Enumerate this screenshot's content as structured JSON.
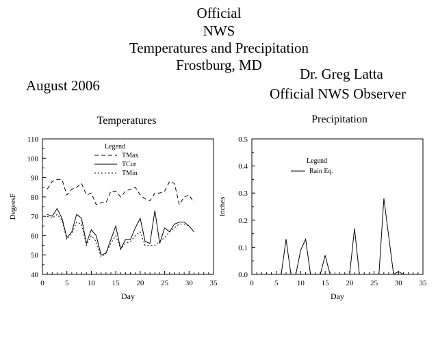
{
  "header": {
    "lines": [
      "Official",
      "NWS",
      "Temperatures and Precipitation",
      "Frostburg, MD"
    ],
    "date": "August 2006",
    "observer_name": "Dr. Greg Latta",
    "observer_title": "Official NWS Observer"
  },
  "chart_data": [
    {
      "type": "line",
      "title": "Temperatures",
      "xlabel": "Day",
      "ylabel": "DegeesF",
      "xlim": [
        0,
        35
      ],
      "ylim": [
        40,
        110
      ],
      "xticks": [
        0,
        5,
        10,
        15,
        20,
        25,
        30,
        35
      ],
      "yticks": [
        40,
        50,
        60,
        70,
        80,
        90,
        100,
        110
      ],
      "grid": false,
      "legend_title": "Legend",
      "legend_position": "top-left",
      "x": [
        1,
        2,
        3,
        4,
        5,
        6,
        7,
        8,
        9,
        10,
        11,
        12,
        13,
        14,
        15,
        16,
        17,
        18,
        19,
        20,
        21,
        22,
        23,
        24,
        25,
        26,
        27,
        28,
        29,
        30,
        31
      ],
      "series": [
        {
          "name": "TMax",
          "style": "dashed",
          "values": [
            84,
            88,
            89,
            89,
            81,
            84,
            85,
            87,
            81,
            82,
            76,
            77,
            77,
            83,
            83,
            80,
            83,
            84,
            85,
            81,
            79,
            78,
            82,
            82,
            83,
            88,
            87,
            76,
            80,
            81,
            77
          ]
        },
        {
          "name": "TCur",
          "style": "solid",
          "values": [
            71,
            70,
            74,
            69,
            59,
            62,
            71,
            69,
            56,
            63,
            60,
            50,
            51,
            58,
            65,
            53,
            58,
            58,
            64,
            69,
            57,
            56,
            73,
            56,
            64,
            62,
            66,
            67,
            67,
            65,
            62
          ]
        },
        {
          "name": "TMin",
          "style": "dotted",
          "values": [
            70,
            69,
            71,
            68,
            58,
            61,
            67,
            66,
            55,
            60,
            57,
            49,
            51,
            56,
            60,
            53,
            56,
            57,
            60,
            62,
            55,
            55,
            55,
            57,
            59,
            62,
            64,
            66,
            66,
            65,
            62
          ]
        }
      ]
    },
    {
      "type": "line",
      "title": "Precipitation",
      "xlabel": "Day",
      "ylabel": "Inches",
      "xlim": [
        0,
        35
      ],
      "ylim": [
        0,
        0.5
      ],
      "xticks": [
        0,
        5,
        10,
        15,
        20,
        25,
        30,
        35
      ],
      "yticks": [
        "0.0",
        "0.1",
        "0.2",
        "0.3",
        "0.4",
        "0.5"
      ],
      "grid": false,
      "legend_title": "Legend",
      "legend_position": "top-left",
      "x": [
        1,
        2,
        3,
        4,
        5,
        6,
        7,
        8,
        9,
        10,
        11,
        12,
        13,
        14,
        15,
        16,
        17,
        18,
        19,
        20,
        21,
        22,
        23,
        24,
        25,
        26,
        27,
        28,
        29,
        30,
        31
      ],
      "series": [
        {
          "name": "Rain Eq.",
          "style": "solid",
          "values": [
            0,
            0,
            0,
            0,
            0,
            0,
            0.13,
            0,
            0,
            0.09,
            0.13,
            0,
            0,
            0,
            0.07,
            0,
            0,
            0,
            0,
            0,
            0.17,
            0,
            0,
            0,
            0,
            0,
            0.28,
            0.14,
            0,
            0.01,
            0
          ]
        }
      ]
    }
  ]
}
